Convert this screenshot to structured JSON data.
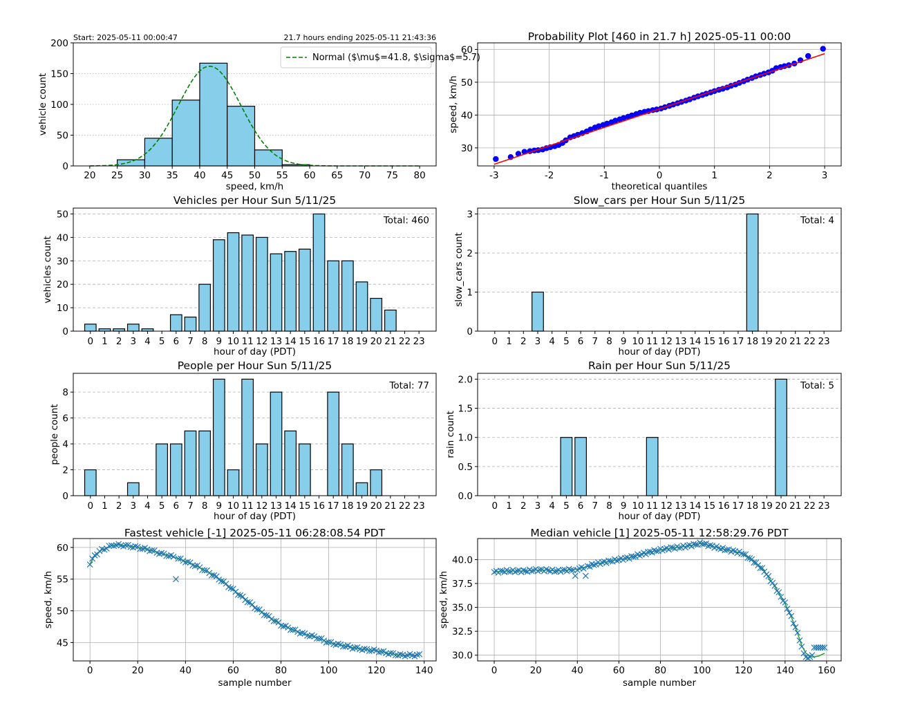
{
  "colors": {
    "bar_fill": "#87ceeb",
    "bar_edge": "#000000",
    "normal_curve": "#008000",
    "prob_points": "#0000ff",
    "prob_line": "#ff0000",
    "vehicle_markers": "#1f77b4",
    "vehicle_fit": "#2ca02c",
    "grid": "#b0b0b0"
  },
  "chart_data": [
    {
      "id": "histogram",
      "type": "bar",
      "title": "",
      "corner_left": "Start: 2025-05-11 00:00:47",
      "corner_right": "21.7 hours  ending 2025-05-11 21:43:36",
      "xlabel": "speed, km/h",
      "ylabel": "vehicle count",
      "bin_edges": [
        25,
        30,
        35,
        40,
        45,
        50,
        55,
        60
      ],
      "values": [
        10,
        45,
        107,
        167,
        97,
        26,
        2
      ],
      "xlim": [
        17,
        83
      ],
      "ylim": [
        0,
        200
      ],
      "xticks": [
        20,
        25,
        30,
        35,
        40,
        45,
        50,
        55,
        60,
        65,
        70,
        75,
        80
      ],
      "yticks": [
        0,
        50,
        100,
        150,
        200
      ],
      "grid": "y, dotted",
      "legend_position": "top-right",
      "legend": "Normal ($\\mu$=41.8, $\\sigma$=5.7)",
      "normal": {
        "mu": 41.8,
        "sigma": 5.7,
        "peak": 162,
        "x_range": [
          20,
          80
        ]
      }
    },
    {
      "id": "probplot",
      "type": "scatter",
      "title": "Probability Plot   [460 in 21.7 h] 2025-05-11 00:00",
      "xlabel": "theoretical quantiles",
      "ylabel": "speed, km/h",
      "xlim": [
        -3.3,
        3.3
      ],
      "ylim": [
        24.5,
        62
      ],
      "xticks": [
        -3,
        -2,
        -1,
        0,
        1,
        2,
        3
      ],
      "yticks": [
        30,
        40,
        50,
        60
      ],
      "grid": "both",
      "fit_line": {
        "x": [
          -3,
          3
        ],
        "y": [
          25,
          58.7
        ]
      },
      "points": {
        "x": [
          -2.97,
          -2.7,
          -2.56,
          -2.45,
          -2.35,
          -2.27,
          -2.2,
          -2.12,
          -2.05,
          -1.98,
          -1.9,
          -1.83,
          -1.76,
          -1.7,
          -1.62,
          -1.55,
          -1.48,
          -1.4,
          -1.32,
          -1.25,
          -1.17,
          -1.1,
          -1.02,
          -0.95,
          -0.87,
          -0.8,
          -0.72,
          -0.65,
          -0.57,
          -0.5,
          -0.42,
          -0.35,
          -0.27,
          -0.2,
          -0.12,
          -0.05,
          0.03,
          0.1,
          0.18,
          0.25,
          0.33,
          0.4,
          0.48,
          0.55,
          0.63,
          0.7,
          0.78,
          0.85,
          0.93,
          1.0,
          1.08,
          1.15,
          1.23,
          1.3,
          1.38,
          1.45,
          1.53,
          1.6,
          1.68,
          1.75,
          1.83,
          1.9,
          1.98,
          2.05,
          2.12,
          2.2,
          2.27,
          2.35,
          2.45,
          2.56,
          2.7,
          2.97
        ],
        "y": [
          26.6,
          27.2,
          28.2,
          28.8,
          29,
          29.2,
          29.3,
          29.5,
          29.9,
          30.2,
          30.5,
          30.9,
          31.5,
          32.3,
          33.2,
          33.6,
          34,
          34.5,
          35,
          35.6,
          36.2,
          36.6,
          37,
          37.4,
          37.8,
          38.3,
          38.7,
          39.1,
          39.5,
          39.9,
          40.3,
          40.7,
          41,
          41.2,
          41.5,
          41.7,
          42,
          42.4,
          42.8,
          43.2,
          43.6,
          44,
          44.4,
          44.8,
          45.3,
          45.7,
          46.1,
          46.5,
          46.9,
          47.3,
          47.7,
          48,
          48.4,
          48.9,
          49.3,
          49.8,
          50.3,
          50.8,
          51.3,
          51.8,
          52.2,
          52.6,
          53,
          53.5,
          54.3,
          54.6,
          54.9,
          55.2,
          55.7,
          56.7,
          58,
          60.2
        ]
      }
    },
    {
      "id": "vehicles",
      "type": "bar",
      "title": "Vehicles per Hour  Sun 5/11/25",
      "xlabel": "hour of day (PDT)",
      "ylabel": "vehicles count",
      "total": "Total: 460",
      "categories": [
        "0",
        "1",
        "2",
        "3",
        "4",
        "5",
        "6",
        "7",
        "8",
        "9",
        "10",
        "11",
        "12",
        "13",
        "14",
        "15",
        "16",
        "17",
        "18",
        "19",
        "20",
        "21",
        "22",
        "23"
      ],
      "values": [
        3,
        1,
        1,
        3,
        1,
        0,
        7,
        6,
        20,
        39,
        42,
        41,
        40,
        33,
        34,
        35,
        50,
        30,
        30,
        21,
        14,
        9,
        0,
        0
      ],
      "ylim": [
        0,
        52.5
      ],
      "yticks": [
        0,
        10,
        20,
        30,
        40,
        50
      ],
      "grid": "y, dashed"
    },
    {
      "id": "slowcars",
      "type": "bar",
      "title": "Slow_cars per Hour  Sun 5/11/25",
      "xlabel": "hour of day (PDT)",
      "ylabel": "slow_cars count",
      "total": "Total: 4",
      "categories": [
        "0",
        "1",
        "2",
        "3",
        "4",
        "5",
        "6",
        "7",
        "8",
        "9",
        "10",
        "11",
        "12",
        "13",
        "14",
        "15",
        "16",
        "17",
        "18",
        "19",
        "20",
        "21",
        "22",
        "23"
      ],
      "values": [
        0,
        0,
        0,
        1,
        0,
        0,
        0,
        0,
        0,
        0,
        0,
        0,
        0,
        0,
        0,
        0,
        0,
        0,
        3,
        0,
        0,
        0,
        0,
        0
      ],
      "ylim": [
        0,
        3.15
      ],
      "yticks": [
        0,
        1,
        2,
        3
      ],
      "grid": "y, dashed"
    },
    {
      "id": "people",
      "type": "bar",
      "title": "People per Hour  Sun 5/11/25",
      "xlabel": "hour of day (PDT)",
      "ylabel": "people count",
      "total": "Total: 77",
      "categories": [
        "0",
        "1",
        "2",
        "3",
        "4",
        "5",
        "6",
        "7",
        "8",
        "9",
        "10",
        "11",
        "12",
        "13",
        "14",
        "15",
        "16",
        "17",
        "18",
        "19",
        "20",
        "21",
        "22",
        "23"
      ],
      "values": [
        2,
        0,
        0,
        1,
        0,
        4,
        4,
        5,
        5,
        9,
        2,
        9,
        4,
        8,
        5,
        4,
        0,
        8,
        4,
        1,
        2,
        0,
        0,
        0
      ],
      "ylim": [
        0,
        9.45
      ],
      "yticks": [
        0,
        2,
        4,
        6,
        8
      ],
      "grid": "y, dashed"
    },
    {
      "id": "rain",
      "type": "bar",
      "title": "Rain per Hour  Sun 5/11/25",
      "xlabel": "hour of day (PDT)",
      "ylabel": "rain count",
      "total": "Total: 5",
      "categories": [
        "0",
        "1",
        "2",
        "3",
        "4",
        "5",
        "6",
        "7",
        "8",
        "9",
        "10",
        "11",
        "12",
        "13",
        "14",
        "15",
        "16",
        "17",
        "18",
        "19",
        "20",
        "21",
        "22",
        "23"
      ],
      "values": [
        0,
        0,
        0,
        0,
        0,
        1,
        1,
        0,
        0,
        0,
        0,
        1,
        0,
        0,
        0,
        0,
        0,
        0,
        0,
        0,
        2,
        0,
        0,
        0
      ],
      "ylim": [
        0,
        2.1
      ],
      "yticks": [
        0.0,
        0.5,
        1.0,
        1.5,
        2.0
      ],
      "ytick_labels": [
        "0.0",
        "0.5",
        "1.0",
        "1.5",
        "2.0"
      ],
      "grid": "y, dashed"
    },
    {
      "id": "fastest",
      "type": "scatter",
      "title": "Fastest vehicle  [-1] 2025-05-11 06:28:08.54 PDT",
      "xlabel": "sample number",
      "ylabel": "speed, km/h",
      "xlim": [
        -7,
        145
      ],
      "ylim": [
        42.1,
        61.4
      ],
      "xticks": [
        0,
        20,
        40,
        60,
        80,
        100,
        120,
        140
      ],
      "yticks": [
        45,
        50,
        55,
        60
      ],
      "grid": "both",
      "outlier": {
        "x": 36,
        "y": 55
      },
      "curve": {
        "x": [
          0,
          2,
          5,
          8,
          10,
          15,
          20,
          25,
          30,
          35,
          40,
          45,
          50,
          55,
          60,
          65,
          70,
          75,
          80,
          85,
          90,
          95,
          100,
          105,
          110,
          115,
          120,
          125,
          130,
          135,
          138
        ],
        "y": [
          57.3,
          58.8,
          59.6,
          60.1,
          60.4,
          60.3,
          60.0,
          59.6,
          59.0,
          58.5,
          57.8,
          57.0,
          56.0,
          54.8,
          53.3,
          51.8,
          50.3,
          49.0,
          47.8,
          47.0,
          46.3,
          45.8,
          45.0,
          44.6,
          44.2,
          43.9,
          43.7,
          43.3,
          43.0,
          43.0,
          43.0
        ]
      }
    },
    {
      "id": "median",
      "type": "scatter",
      "title": "Median vehicle  [1] 2025-05-11 12:58:29.76 PDT",
      "xlabel": "sample number",
      "ylabel": "speed, km/h",
      "xlim": [
        -8,
        167
      ],
      "ylim": [
        29.4,
        42.2
      ],
      "xticks": [
        0,
        20,
        40,
        60,
        80,
        100,
        120,
        140,
        160
      ],
      "yticks": [
        30.0,
        32.5,
        35.0,
        37.5,
        40.0
      ],
      "ytick_labels": [
        "30.0",
        "32.5",
        "35.0",
        "37.5",
        "40.0"
      ],
      "grid": "both",
      "outliers": [
        {
          "x": 39,
          "y": 38.3
        },
        {
          "x": 44,
          "y": 38.3
        }
      ],
      "curve": {
        "x": [
          0,
          5,
          10,
          15,
          20,
          25,
          30,
          35,
          40,
          45,
          50,
          55,
          60,
          65,
          70,
          75,
          80,
          85,
          90,
          95,
          100,
          105,
          110,
          115,
          120,
          125,
          130,
          135,
          140,
          143,
          146,
          148,
          150,
          153,
          156,
          159
        ],
        "y": [
          38.7,
          38.8,
          38.8,
          38.8,
          38.9,
          38.9,
          38.8,
          38.9,
          39.0,
          39.3,
          39.6,
          39.8,
          40.0,
          40.2,
          40.5,
          40.8,
          41.0,
          41.2,
          41.3,
          41.5,
          41.7,
          41.4,
          41.1,
          40.9,
          40.6,
          39.8,
          38.8,
          37.2,
          35.4,
          34.0,
          32.3,
          31.0,
          30.2,
          29.8,
          29.9,
          30.2
        ]
      },
      "tail": {
        "x": [
          148,
          149,
          150,
          151,
          152,
          153,
          154,
          155,
          156,
          157,
          158,
          159
        ],
        "y": [
          30.9,
          30.2,
          29.8,
          29.7,
          29.8,
          30.0,
          30.8,
          30.8,
          30.8,
          30.8,
          30.8,
          30.8
        ]
      }
    }
  ]
}
